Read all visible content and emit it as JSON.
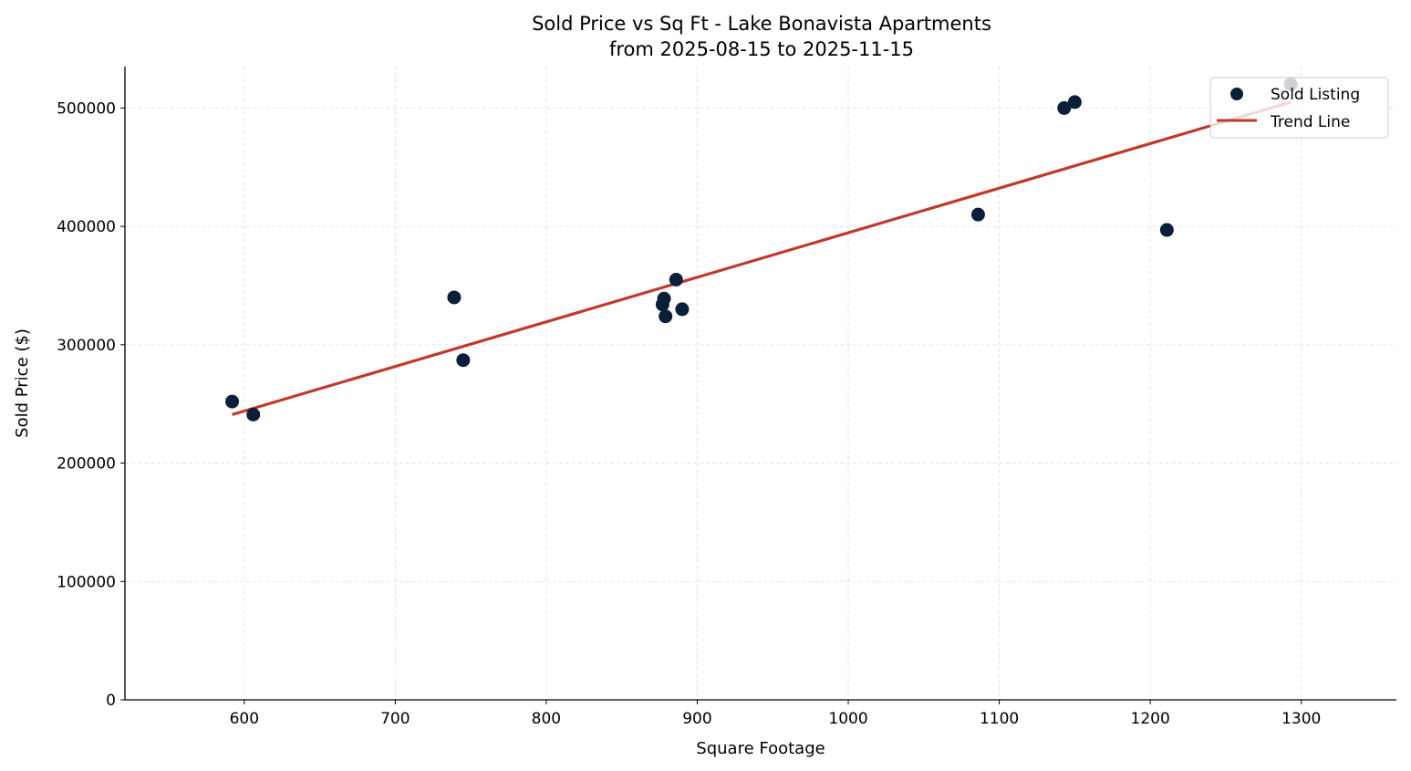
{
  "chart_data": {
    "type": "scatter",
    "title": "Sold Price vs Sq Ft - Lake Bonavista Apartments",
    "subtitle": "from 2025-08-15 to 2025-11-15",
    "xlabel": "Square Footage",
    "ylabel": "Sold Price ($)",
    "xlim": [
      521,
      1363
    ],
    "ylim": [
      0,
      535000
    ],
    "xticks": [
      600,
      700,
      800,
      900,
      1000,
      1100,
      1200,
      1300
    ],
    "yticks": [
      0,
      100000,
      200000,
      300000,
      400000,
      500000
    ],
    "grid": true,
    "legend_position": "top-right",
    "series": [
      {
        "name": "Sold Listing",
        "kind": "scatter",
        "color": "#0b1f3a",
        "points": [
          [
            592,
            252000
          ],
          [
            606,
            241000
          ],
          [
            739,
            340000
          ],
          [
            745,
            287000
          ],
          [
            886,
            355000
          ],
          [
            878,
            339000
          ],
          [
            877,
            334000
          ],
          [
            879,
            324000
          ],
          [
            890,
            330000
          ],
          [
            1086,
            410000
          ],
          [
            1143,
            500000
          ],
          [
            1150,
            505000
          ],
          [
            1211,
            397000
          ],
          [
            1293,
            520000
          ]
        ]
      },
      {
        "name": "Trend Line",
        "kind": "line",
        "color": "#c0392b",
        "points": [
          [
            592,
            241000
          ],
          [
            1293,
            505000
          ]
        ]
      }
    ]
  }
}
